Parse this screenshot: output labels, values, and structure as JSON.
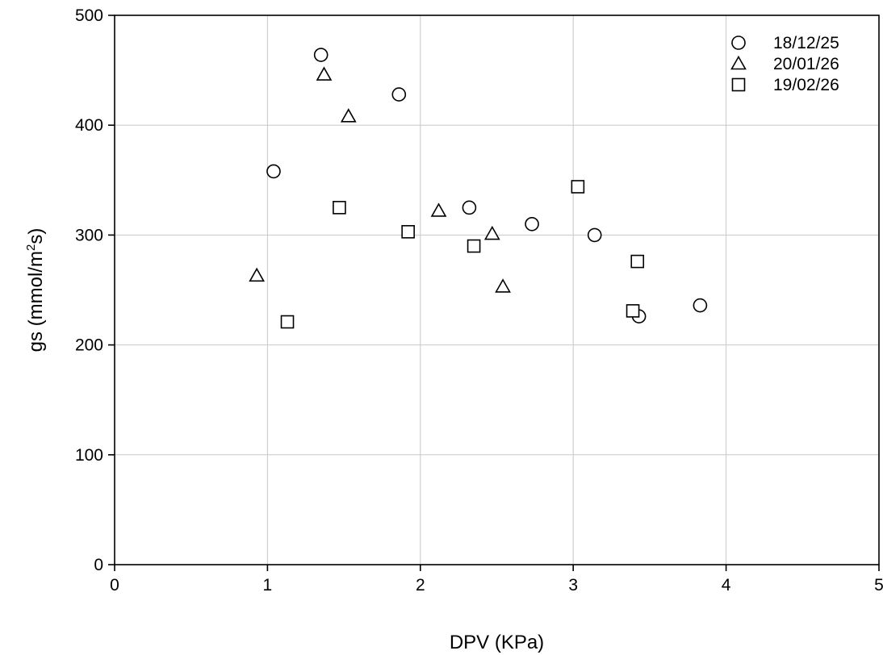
{
  "chart_data": {
    "type": "scatter",
    "xlabel": "DPV (KPa)",
    "ylabel_main": "gs (mmol/m",
    "ylabel_sup": "2",
    "ylabel_tail": "s)",
    "xlim": [
      0,
      5
    ],
    "ylim": [
      0,
      500
    ],
    "xticks": [
      "0",
      "1",
      "2",
      "3",
      "4",
      "5"
    ],
    "yticks": [
      "0",
      "100",
      "200",
      "300",
      "400",
      "500"
    ],
    "grid": true,
    "legend_position": "top-right",
    "series": [
      {
        "name": "18/12/25",
        "marker": "circle",
        "points": [
          {
            "x": 1.04,
            "y": 358
          },
          {
            "x": 1.35,
            "y": 464
          },
          {
            "x": 1.86,
            "y": 428
          },
          {
            "x": 2.32,
            "y": 325
          },
          {
            "x": 2.73,
            "y": 310
          },
          {
            "x": 3.14,
            "y": 300
          },
          {
            "x": 3.43,
            "y": 226
          },
          {
            "x": 3.83,
            "y": 236
          }
        ]
      },
      {
        "name": "20/01/26",
        "marker": "triangle",
        "points": [
          {
            "x": 0.93,
            "y": 263
          },
          {
            "x": 1.37,
            "y": 446
          },
          {
            "x": 1.53,
            "y": 408
          },
          {
            "x": 2.12,
            "y": 322
          },
          {
            "x": 2.47,
            "y": 301
          },
          {
            "x": 2.54,
            "y": 253
          }
        ]
      },
      {
        "name": "19/02/26",
        "marker": "square",
        "points": [
          {
            "x": 1.13,
            "y": 221
          },
          {
            "x": 1.47,
            "y": 325
          },
          {
            "x": 1.92,
            "y": 303
          },
          {
            "x": 2.35,
            "y": 290
          },
          {
            "x": 3.03,
            "y": 344
          },
          {
            "x": 3.39,
            "y": 231
          },
          {
            "x": 3.42,
            "y": 276
          }
        ]
      }
    ]
  }
}
